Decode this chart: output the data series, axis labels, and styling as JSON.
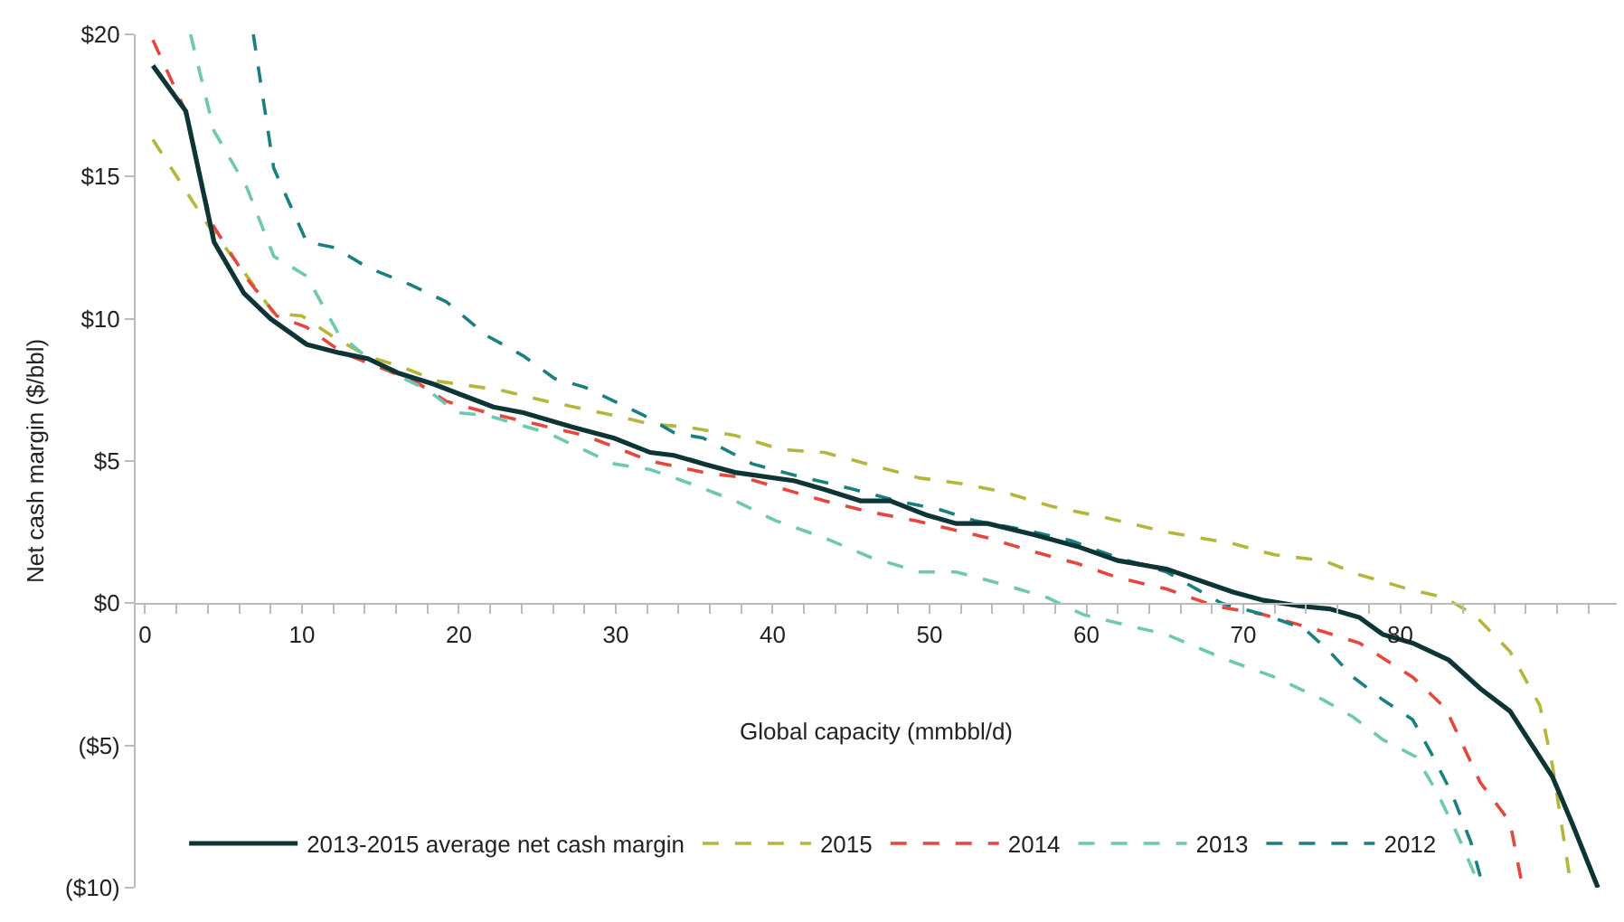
{
  "chart_data": {
    "type": "line",
    "xlabel": "Global capacity (mmbbl/d)",
    "ylabel": "Net cash margin ($/bbl)",
    "xlim": [
      -0.6,
      93.8
    ],
    "xticks": [
      0,
      {
        "value": 2,
        "label": null
      },
      {
        "value": 4,
        "label": null
      },
      {
        "value": 6,
        "label": null
      },
      {
        "value": 8,
        "label": null
      },
      10,
      {
        "value": 12,
        "label": null
      },
      {
        "value": 14,
        "label": null
      },
      {
        "value": 16,
        "label": null
      },
      {
        "value": 18,
        "label": null
      },
      20,
      {
        "value": 22,
        "label": null
      },
      {
        "value": 24,
        "label": null
      },
      {
        "value": 26,
        "label": null
      },
      {
        "value": 28,
        "label": null
      },
      30,
      {
        "value": 32,
        "label": null
      },
      {
        "value": 34,
        "label": null
      },
      {
        "value": 36,
        "label": null
      },
      {
        "value": 38,
        "label": null
      },
      40,
      {
        "value": 42,
        "label": null
      },
      {
        "value": 44,
        "label": null
      },
      {
        "value": 46,
        "label": null
      },
      {
        "value": 48,
        "label": null
      },
      50,
      {
        "value": 52,
        "label": null
      },
      {
        "value": 54,
        "label": null
      },
      {
        "value": 56,
        "label": null
      },
      {
        "value": 58,
        "label": null
      },
      60,
      {
        "value": 62,
        "label": null
      },
      {
        "value": 64,
        "label": null
      },
      {
        "value": 66,
        "label": null
      },
      {
        "value": 68,
        "label": null
      },
      70,
      {
        "value": 72,
        "label": null
      },
      {
        "value": 74,
        "label": null
      },
      {
        "value": 76,
        "label": null
      },
      {
        "value": 78,
        "label": null
      },
      80,
      {
        "value": 82,
        "label": null
      },
      {
        "value": 84,
        "label": null
      },
      {
        "value": 86,
        "label": null
      },
      {
        "value": 88,
        "label": null
      },
      {
        "value": 90,
        "label": null
      },
      {
        "value": 92,
        "label": null
      }
    ],
    "ylim": [
      -10,
      20
    ],
    "yticks": [
      {
        "value": -10,
        "label": "($10)"
      },
      {
        "value": -5,
        "label": "($5)"
      },
      {
        "value": 0,
        "label": "$0"
      },
      {
        "value": 5,
        "label": "$5"
      },
      {
        "value": 10,
        "label": "$10"
      },
      {
        "value": 15,
        "label": "$15"
      },
      {
        "value": 20,
        "label": "$20"
      }
    ],
    "grid": false,
    "legend": "bottom left",
    "marker": "none",
    "series": [
      {
        "name": "2013-2015 average net cash margin",
        "color": "#0d3535",
        "line_style": "solid",
        "x": [
          0.5,
          2.6,
          4.4,
          6.3,
          8,
          10.3,
          12.4,
          14.2,
          16.1,
          18.4,
          22.2,
          24.1,
          27.2,
          29.9,
          32.2,
          33.7,
          35.6,
          37.6,
          41.4,
          43.3,
          45.6,
          47.5,
          49.8,
          51.7,
          53.7,
          56.7,
          59.4,
          62,
          65.1,
          69.3,
          71.3,
          73.6,
          75.5,
          77.4,
          78.9,
          80.8,
          83.1,
          85.1,
          87,
          89.7,
          91,
          92.6
        ],
        "values": [
          18.9,
          17.3,
          12.7,
          10.9,
          10,
          9.1,
          8.8,
          8.6,
          8.1,
          7.7,
          6.9,
          6.7,
          6.2,
          5.8,
          5.3,
          5.2,
          4.9,
          4.6,
          4.3,
          4,
          3.6,
          3.6,
          3.1,
          2.8,
          2.8,
          2.4,
          2,
          1.5,
          1.2,
          0.4,
          0.1,
          -0.1,
          -0.2,
          -0.5,
          -1.1,
          -1.4,
          -2,
          -3,
          -3.8,
          -6.1,
          -7.8,
          -10
        ]
      },
      {
        "name": "2015",
        "color": "#b5b53a",
        "line_style": "dashed",
        "x": [
          0.5,
          4,
          6.1,
          8.2,
          10,
          11.9,
          14.1,
          16.4,
          18.7,
          22.6,
          25.6,
          29.9,
          32.2,
          34.5,
          37.6,
          40.6,
          43.3,
          46,
          49.4,
          52.1,
          54.8,
          57.8,
          61.3,
          65.1,
          69.3,
          72,
          75.1,
          77.4,
          80.5,
          82.8,
          84.7,
          87,
          88.9,
          89.7,
          90.9
        ],
        "values": [
          16.3,
          13.3,
          11.8,
          10.2,
          10.1,
          9.4,
          8.7,
          8.3,
          7.8,
          7.5,
          7.1,
          6.6,
          6.3,
          6.2,
          5.9,
          5.4,
          5.3,
          4.9,
          4.4,
          4.2,
          3.9,
          3.4,
          3,
          2.5,
          2.1,
          1.7,
          1.5,
          1,
          0.5,
          0.2,
          -0.4,
          -1.7,
          -3.6,
          -5.7,
          -10
        ]
      },
      {
        "name": "2014",
        "color": "#e8453c",
        "line_style": "dashed",
        "x": [
          0.5,
          2.5,
          4.2,
          6.5,
          8.4,
          10.3,
          12.6,
          14.9,
          17.2,
          19.2,
          21.8,
          24.9,
          28,
          29.9,
          32.2,
          35.6,
          38.3,
          41.4,
          43.3,
          46.3,
          49.1,
          51.4,
          53.7,
          56.7,
          59.4,
          62,
          65.1,
          68.2,
          71.3,
          75.1,
          77.4,
          80.8,
          82.9,
          85.1,
          87,
          87.8
        ],
        "values": [
          19.8,
          17.4,
          13.4,
          11.4,
          10.1,
          9.7,
          8.8,
          8.3,
          7.8,
          7.1,
          6.7,
          6.3,
          5.9,
          5.5,
          5,
          4.6,
          4.4,
          3.9,
          3.6,
          3.2,
          2.9,
          2.6,
          2.3,
          1.8,
          1.4,
          0.9,
          0.5,
          -0.1,
          -0.4,
          -1,
          -1.4,
          -2.6,
          -3.7,
          -6.3,
          -7.7,
          -10
        ]
      },
      {
        "name": "2013",
        "color": "#6cc9b0",
        "line_style": "dashed",
        "x": [
          2.9,
          4.4,
          6.5,
          8.2,
          10.3,
          12.3,
          13.8,
          16.1,
          18,
          19.9,
          21.8,
          25.6,
          28.7,
          29.9,
          32.2,
          34.8,
          37.6,
          40.2,
          43.3,
          46.3,
          49.4,
          51.7,
          54.4,
          57.5,
          59.8,
          62,
          65.1,
          69,
          72,
          75.1,
          77,
          78.9,
          81,
          82.4,
          83.7,
          85.1
        ],
        "values": [
          20,
          16.6,
          14.6,
          12.2,
          11.5,
          9.5,
          8.8,
          8,
          7.5,
          6.7,
          6.6,
          6,
          5.2,
          4.9,
          4.7,
          4.2,
          3.6,
          2.9,
          2.3,
          1.6,
          1.1,
          1.1,
          0.7,
          0.2,
          -0.4,
          -0.7,
          -1.1,
          -2,
          -2.6,
          -3.4,
          -4,
          -4.8,
          -5.4,
          -6.7,
          -8.2,
          -10
        ]
      },
      {
        "name": "2012",
        "color": "#1a7f80",
        "line_style": "dashed",
        "x": [
          6.9,
          8.2,
          10.3,
          12.1,
          14.2,
          16.9,
          19.2,
          21.8,
          24.1,
          26.1,
          28,
          29.9,
          31.8,
          33.7,
          35.6,
          38.7,
          41.4,
          45.2,
          47.9,
          50.6,
          52.9,
          55.9,
          59,
          62,
          65.1,
          68.6,
          71.3,
          73.9,
          75.5,
          77,
          78.9,
          80.8,
          82,
          83.3,
          84.5,
          85.1
        ],
        "values": [
          20,
          15.3,
          12.7,
          12.5,
          11.8,
          11.2,
          10.6,
          9.4,
          8.7,
          7.9,
          7.6,
          7.1,
          6.6,
          6,
          5.8,
          4.9,
          4.5,
          4,
          3.6,
          3.3,
          2.9,
          2.6,
          2.2,
          1.6,
          1.1,
          0,
          -0.4,
          -0.9,
          -1.7,
          -2.6,
          -3.4,
          -4.1,
          -5.3,
          -6.7,
          -8.4,
          -9.6
        ]
      }
    ]
  }
}
